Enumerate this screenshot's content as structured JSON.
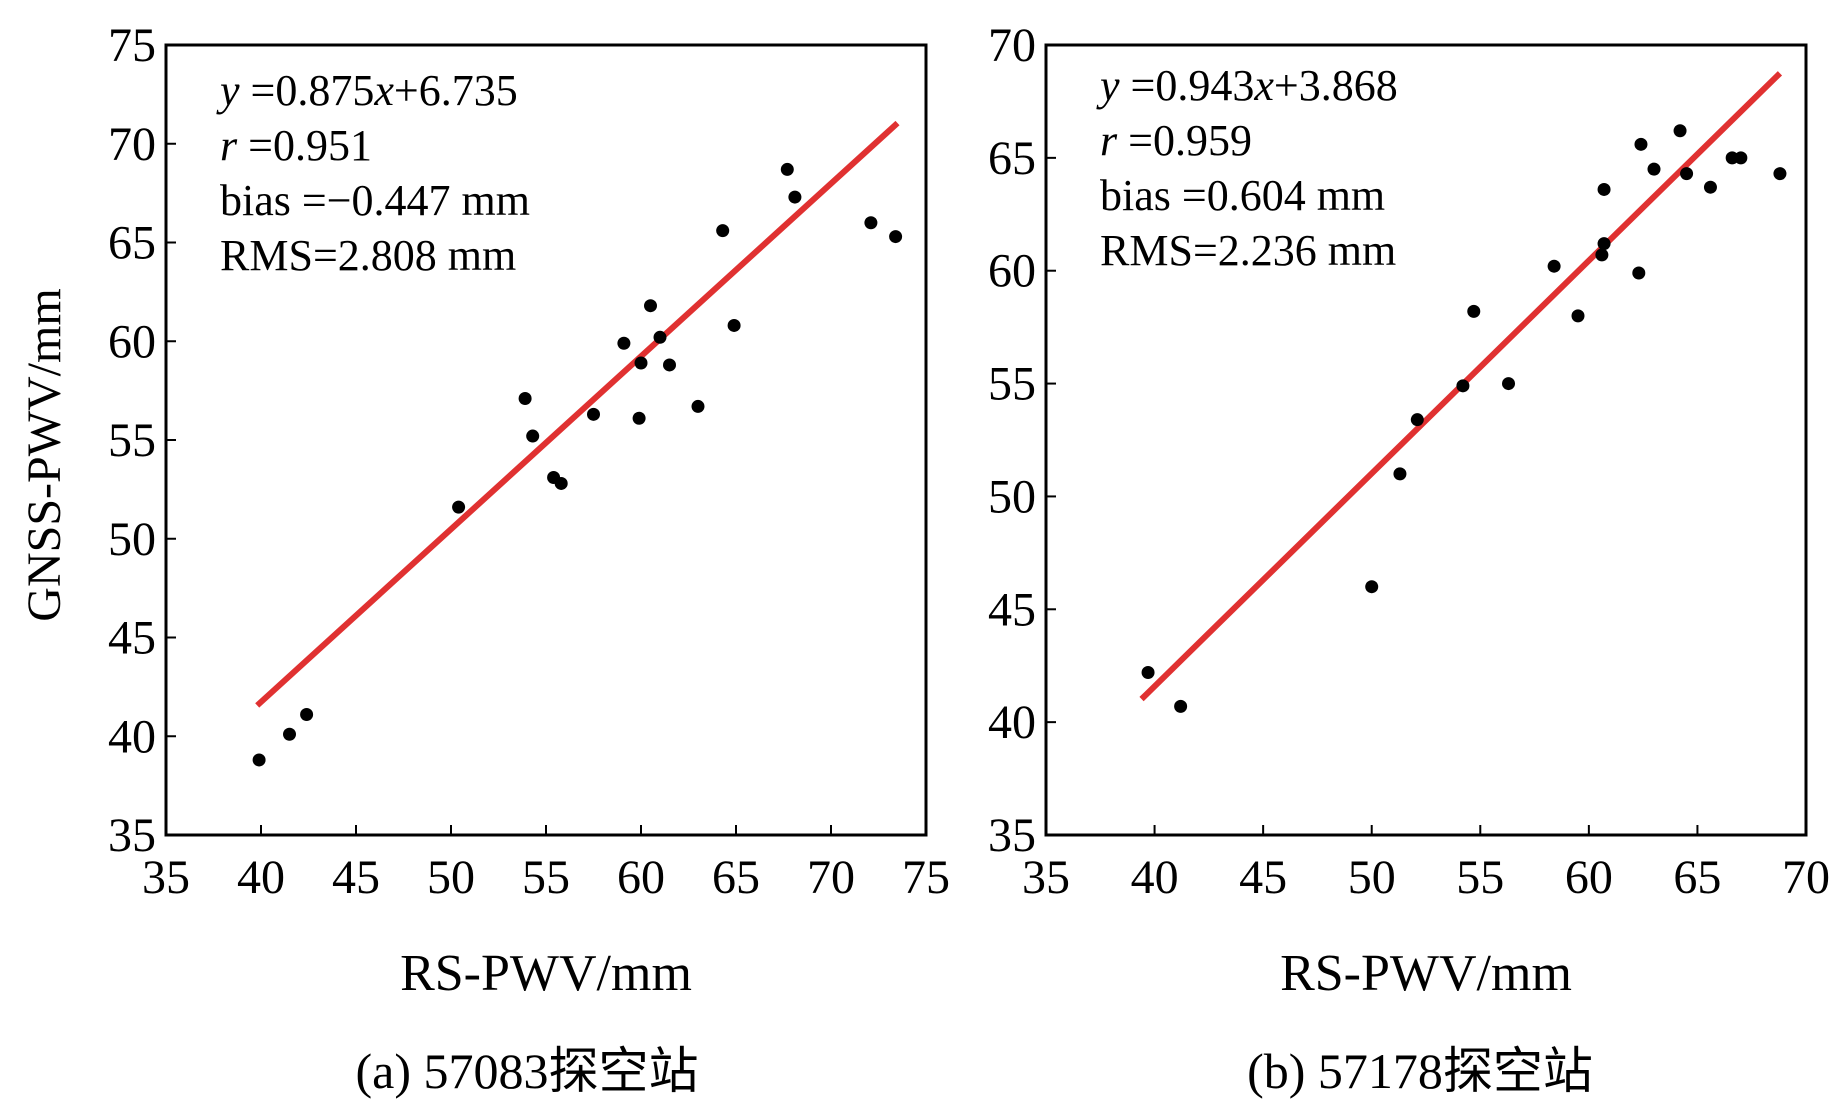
{
  "chart_data": [
    {
      "type": "scatter",
      "panel": "a",
      "caption": "(a) 57083探空站",
      "xlabel": "RS-PWV/mm",
      "ylabel": "GNSS-PWV/mm",
      "xlim": [
        35,
        75
      ],
      "ylim": [
        35,
        75
      ],
      "xticks": [
        35,
        40,
        45,
        50,
        55,
        60,
        65,
        70,
        75
      ],
      "yticks": [
        35,
        40,
        45,
        50,
        55,
        60,
        65,
        70,
        75
      ],
      "stats": [
        {
          "var": "y",
          "text": " =0.875",
          "var2": "x",
          "text2": "+6.735"
        },
        {
          "var": "r",
          "text": " =0.951"
        },
        {
          "var": "",
          "text": "bias =−0.447 mm"
        },
        {
          "var": "",
          "text": "RMS=2.808 mm"
        }
      ],
      "fit": {
        "slope": 0.875,
        "intercept": 6.735,
        "x_range": [
          39.8,
          73.5
        ],
        "color": "#e03131"
      },
      "points": [
        [
          39.9,
          38.8
        ],
        [
          41.5,
          40.1
        ],
        [
          42.4,
          41.1
        ],
        [
          50.4,
          51.6
        ],
        [
          53.9,
          57.1
        ],
        [
          54.3,
          55.2
        ],
        [
          55.4,
          53.1
        ],
        [
          55.8,
          52.8
        ],
        [
          57.5,
          56.3
        ],
        [
          59.1,
          59.9
        ],
        [
          59.9,
          56.1
        ],
        [
          60.0,
          58.9
        ],
        [
          60.5,
          61.8
        ],
        [
          61.0,
          60.2
        ],
        [
          61.5,
          58.8
        ],
        [
          63.0,
          56.7
        ],
        [
          64.3,
          65.6
        ],
        [
          64.9,
          60.8
        ],
        [
          67.7,
          68.7
        ],
        [
          68.1,
          67.3
        ],
        [
          72.1,
          66.0
        ],
        [
          73.4,
          65.3
        ]
      ]
    },
    {
      "type": "scatter",
      "panel": "b",
      "caption": "(b) 57178探空站",
      "xlabel": "RS-PWV/mm",
      "ylabel": "",
      "xlim": [
        35,
        70
      ],
      "ylim": [
        35,
        70
      ],
      "xticks": [
        35,
        40,
        45,
        50,
        55,
        60,
        65,
        70
      ],
      "yticks": [
        35,
        40,
        45,
        50,
        55,
        60,
        65,
        70
      ],
      "stats": [
        {
          "var": "y",
          "text": " =0.943",
          "var2": "x",
          "text2": "+3.868"
        },
        {
          "var": "r",
          "text": " =0.959"
        },
        {
          "var": "",
          "text": "bias =0.604 mm"
        },
        {
          "var": "",
          "text": "RMS=2.236 mm"
        }
      ],
      "fit": {
        "slope": 0.943,
        "intercept": 3.868,
        "x_range": [
          39.4,
          68.8
        ],
        "color": "#e03131"
      },
      "points": [
        [
          39.7,
          42.2
        ],
        [
          41.2,
          40.7
        ],
        [
          50.0,
          46.0
        ],
        [
          51.3,
          51.0
        ],
        [
          52.1,
          53.4
        ],
        [
          54.2,
          54.9
        ],
        [
          54.7,
          58.2
        ],
        [
          56.3,
          55.0
        ],
        [
          58.4,
          60.2
        ],
        [
          59.5,
          58.0
        ],
        [
          60.6,
          60.7
        ],
        [
          60.7,
          61.2
        ],
        [
          60.7,
          63.6
        ],
        [
          62.3,
          59.9
        ],
        [
          62.4,
          65.6
        ],
        [
          63.0,
          64.5
        ],
        [
          64.2,
          66.2
        ],
        [
          64.5,
          64.3
        ],
        [
          65.6,
          63.7
        ],
        [
          66.6,
          65.0
        ],
        [
          67.0,
          65.0
        ],
        [
          68.8,
          64.3
        ]
      ]
    }
  ]
}
